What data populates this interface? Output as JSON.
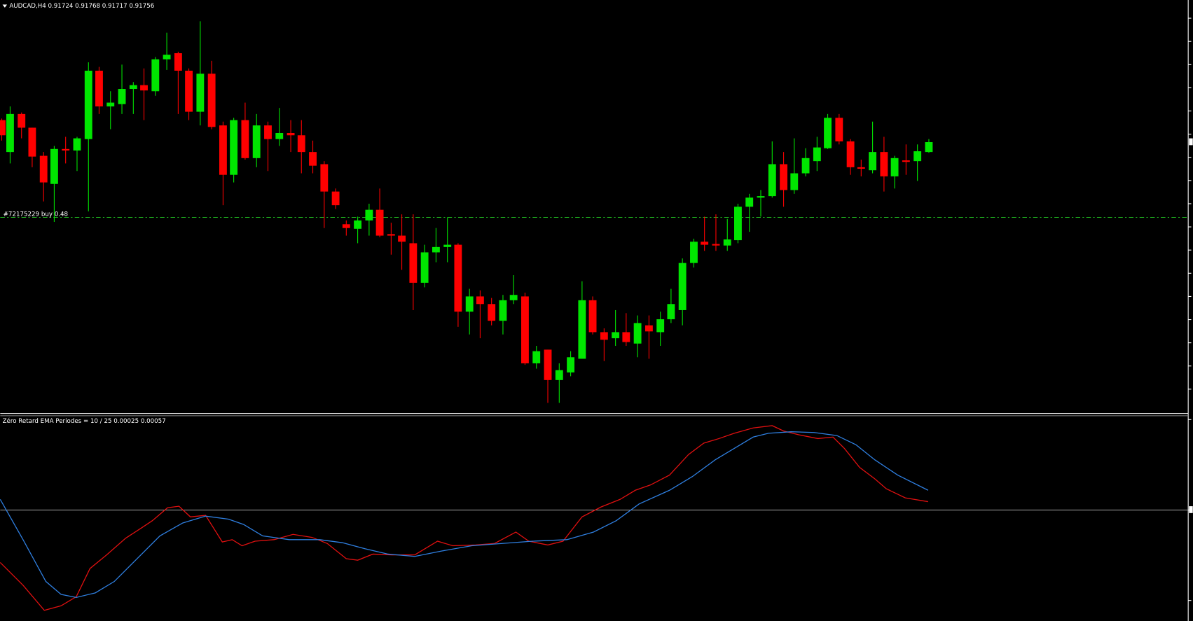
{
  "header": {
    "symbol_info": "AUDCAD,H4  0.91724 0.91768 0.91717 0.91756"
  },
  "order_label": "#72175229 buy 0.48",
  "indicator": {
    "label": "Zéro Retard EMA Periodes = 10 / 25  0.00025 0.00057"
  }
}
